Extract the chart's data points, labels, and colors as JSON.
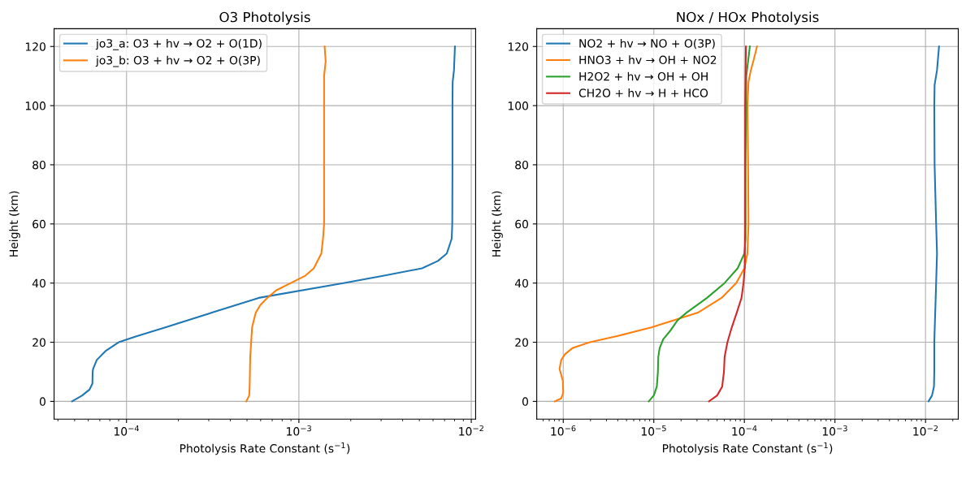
{
  "chart_data": [
    {
      "type": "line",
      "title": "O3 Photolysis",
      "xlabel": "Photolysis Rate Constant (s$^{−1}$)",
      "ylabel": "Height (km)",
      "log": "x",
      "grid": true,
      "legend": "top left",
      "xlim": [
        3.8e-05,
        0.0106
      ],
      "xticks": [
        {
          "value": 0.0001,
          "label": "10$^{−4}$"
        },
        {
          "value": 0.001,
          "label": "10$^{−3}$"
        },
        {
          "value": 0.01,
          "label": "10$^{−2}$"
        }
      ],
      "ylim": [
        -6,
        126
      ],
      "yticks": [
        0,
        20,
        40,
        60,
        80,
        100,
        120
      ],
      "series": [
        {
          "name": "jo3_a: O3 + hv → O2 + O(1D)",
          "color": "#1f77b4",
          "x": [
            4.83e-05,
            5.53e-05,
            6.1e-05,
            6.34e-05,
            6.36e-05,
            6.4e-05,
            6.72e-05,
            7.55e-05,
            9e-05,
            0.000114,
            0.000168,
            0.000313,
            0.000585,
            0.00181,
            0.00312,
            0.00518,
            0.00641,
            0.00721,
            0.0077,
            0.00776,
            0.00778,
            0.00778,
            0.0078,
            0.00794,
            0.00804
          ],
          "values": [
            0,
            2,
            4,
            6,
            10,
            11,
            14,
            17,
            20,
            22,
            25,
            30,
            35,
            40,
            42.5,
            45,
            47.5,
            50,
            55,
            60,
            80,
            100,
            108,
            112,
            120
          ]
        },
        {
          "name": "jo3_b: O3 + hv → O2 + O(3P)",
          "color": "#ff7f0e",
          "x": [
            0.000495,
            0.000515,
            0.000518,
            0.000522,
            0.000535,
            0.000562,
            0.000596,
            0.000656,
            0.000737,
            0.000897,
            0.00109,
            0.00122,
            0.00135,
            0.00138,
            0.0014,
            0.0014,
            0.0014,
            0.00143,
            0.00141
          ],
          "values": [
            0,
            2,
            5,
            15,
            25,
            30,
            32.5,
            35,
            37.5,
            40,
            42.5,
            45,
            50,
            55,
            60,
            80,
            110,
            115,
            120
          ]
        }
      ]
    },
    {
      "type": "line",
      "title": "NOx / HOx Photolysis",
      "xlabel": "Photolysis Rate Constant (s$^{−1}$)",
      "ylabel": "Height (km)",
      "log": "x",
      "grid": true,
      "legend": "top left",
      "xlim": [
        5.1e-07,
        0.023
      ],
      "xticks": [
        {
          "value": 1e-06,
          "label": "10$^{−6}$"
        },
        {
          "value": 1e-05,
          "label": "10$^{−5}$"
        },
        {
          "value": 0.0001,
          "label": "10$^{−4}$"
        },
        {
          "value": 0.001,
          "label": "10$^{−3}$"
        },
        {
          "value": 0.01,
          "label": "10$^{−2}$"
        }
      ],
      "ylim": [
        -6,
        126
      ],
      "yticks": [
        0,
        20,
        40,
        60,
        80,
        100,
        120
      ],
      "series": [
        {
          "name": "NO2 + hv → NO + O(3P)",
          "color": "#1f77b4",
          "x": [
            0.0108,
            0.0118,
            0.0124,
            0.0125,
            0.0125,
            0.0128,
            0.0131,
            0.0134,
            0.0131,
            0.0126,
            0.0125,
            0.0126,
            0.0134,
            0.0141
          ],
          "values": [
            0,
            2,
            5,
            10,
            20,
            30,
            40,
            50,
            60,
            80,
            100,
            107,
            112,
            120
          ]
        },
        {
          "name": "HNO3 + hv → OH + NO2",
          "color": "#ff7f0e",
          "x": [
            8.06e-07,
            9.5e-07,
            1e-06,
            9.9e-07,
            9.1e-07,
            9.5e-07,
            1.05e-06,
            1.26e-06,
            1.97e-06,
            3.84e-06,
            9.4e-06,
            1.69e-05,
            3.07e-05,
            5.6e-05,
            8.12e-05,
            0.0001,
            0.000108,
            0.000111,
            0.00011,
            0.000108,
            0.000111,
            0.000118,
            0.000128,
            0.000138
          ],
          "values": [
            0,
            1,
            3,
            7,
            11,
            14,
            16,
            18,
            20,
            22,
            25,
            27.5,
            30,
            35,
            40,
            45,
            50,
            60,
            80,
            100,
            108,
            112,
            116,
            120
          ]
        },
        {
          "name": "H2O2 + hv → OH + OH",
          "color": "#2ca02c",
          "x": [
            8.8e-06,
            1e-05,
            1.08e-05,
            1.11e-05,
            1.12e-05,
            1.16e-05,
            1.27e-05,
            1.53e-05,
            1.84e-05,
            2.3e-05,
            3.87e-05,
            6.04e-05,
            8.43e-05,
            0.0001,
            0.000103,
            0.000103,
            0.000105,
            0.000115
          ],
          "values": [
            0,
            2,
            5,
            10,
            15,
            18,
            21,
            24,
            27.5,
            30,
            35,
            40,
            45,
            50,
            55,
            80,
            110,
            120
          ]
        },
        {
          "name": "CH2O + hv → H + HCO",
          "color": "#d62728",
          "x": [
            4.07e-05,
            5e-05,
            5.69e-05,
            5.95e-05,
            6.05e-05,
            6.5e-05,
            7.26e-05,
            8.24e-05,
            9.3e-05,
            9.78e-05,
            0.000101,
            0.000102,
            0.000102,
            0.000104
          ],
          "values": [
            0,
            2,
            5,
            10,
            15,
            20,
            25,
            30,
            35,
            40,
            45,
            60,
            100,
            120
          ]
        }
      ]
    }
  ]
}
